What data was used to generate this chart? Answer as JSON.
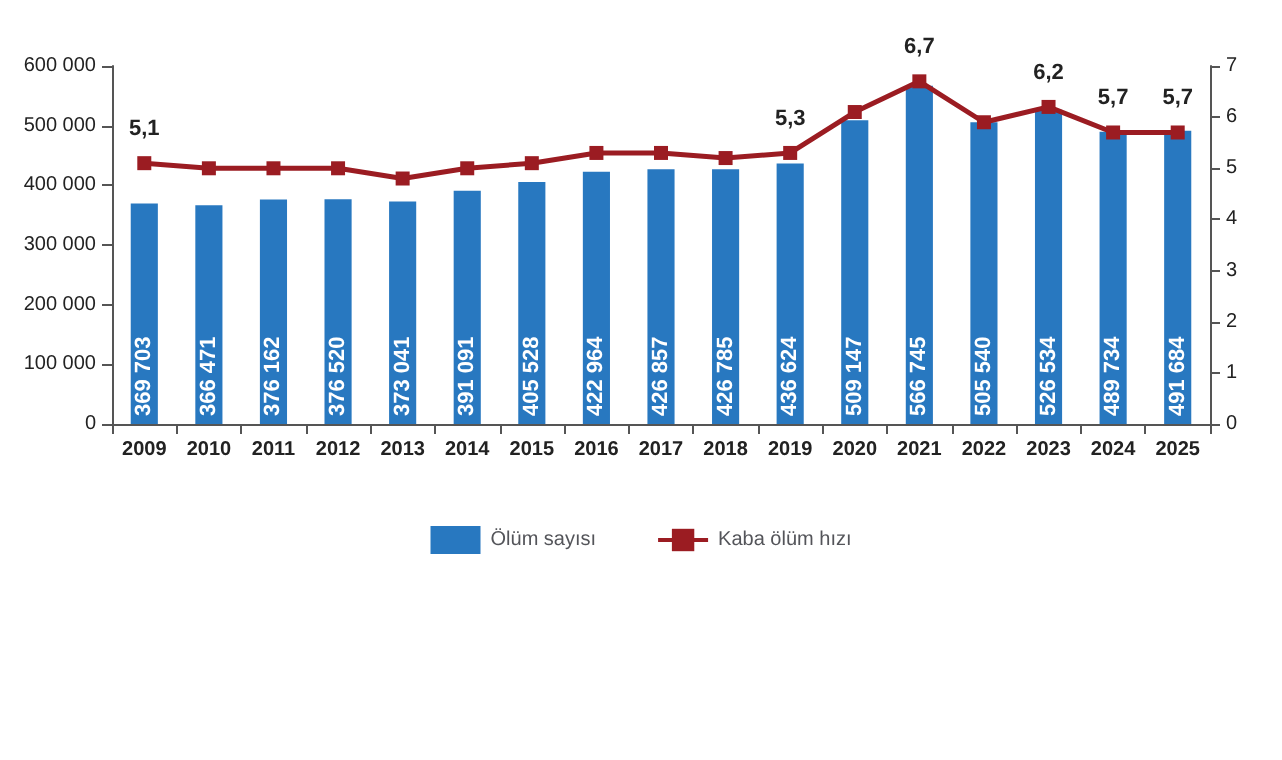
{
  "chart_data": {
    "type": "bar",
    "categories": [
      "2009",
      "2010",
      "2011",
      "2012",
      "2013",
      "2014",
      "2015",
      "2016",
      "2017",
      "2018",
      "2019",
      "2020",
      "2021",
      "2022",
      "2023",
      "2024",
      "2025"
    ],
    "series": [
      {
        "name": "Ölüm sayısı",
        "color": "#2878c0",
        "values": [
          369703,
          366471,
          376162,
          376520,
          373041,
          391091,
          405528,
          422964,
          426857,
          426785,
          436624,
          509147,
          566745,
          505540,
          526534,
          489734,
          491684
        ],
        "value_labels": [
          "369 703",
          "366 471",
          "376 162",
          "376 520",
          "373 041",
          "391 091",
          "405 528",
          "422 964",
          "426 857",
          "426 785",
          "436 624",
          "509 147",
          "566 745",
          "505 540",
          "526 534",
          "489 734",
          "491 684"
        ]
      },
      {
        "name": "Kaba ölüm hızı",
        "type": "line",
        "axis": "y2",
        "color": "#9b1c22",
        "values": [
          5.1,
          5.0,
          5.0,
          5.0,
          4.8,
          5.0,
          5.1,
          5.3,
          5.3,
          5.2,
          5.3,
          6.1,
          6.7,
          5.9,
          6.2,
          5.7,
          5.7
        ],
        "value_labels": [
          "5,1",
          null,
          null,
          null,
          null,
          null,
          null,
          null,
          null,
          null,
          "5,3",
          null,
          "6,7",
          null,
          "6,2",
          "5,7",
          "5,7"
        ]
      }
    ],
    "ylim": [
      0,
      600000
    ],
    "yticks": [
      {
        "value": 0,
        "label": "0"
      },
      {
        "value": 100000,
        "label": "100 000"
      },
      {
        "value": 200000,
        "label": "200 000"
      },
      {
        "value": 300000,
        "label": "300 000"
      },
      {
        "value": 400000,
        "label": "400 000"
      },
      {
        "value": 500000,
        "label": "500 000"
      },
      {
        "value": 600000,
        "label": "600 000"
      }
    ],
    "y2lim": [
      0,
      7
    ],
    "y2ticks": [
      0,
      1,
      2,
      3,
      4,
      5,
      6,
      7
    ],
    "marker": "square",
    "grid": false,
    "legend": "bottom"
  }
}
